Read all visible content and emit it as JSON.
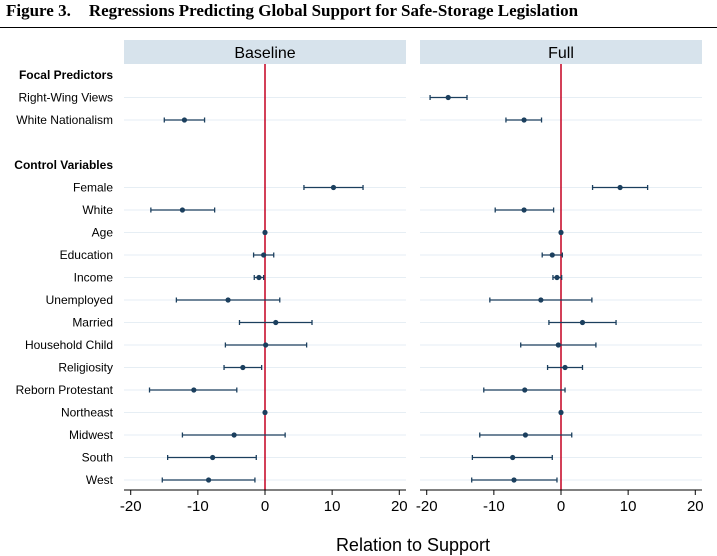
{
  "figure": {
    "number": "Figure 3.",
    "title": "Regressions Predicting Global Support for Safe-Storage Legislation"
  },
  "colors": {
    "strip_bg": "#d7e3ec",
    "point": "#1b3f5e",
    "ci": "#1b3f5e",
    "zero_line": "#c8102e",
    "grid": "#e6eef4",
    "axis": "#000000"
  },
  "chart_data": {
    "type": "scatter",
    "subtype": "coefficient-plot",
    "xlabel": "Relation to Support",
    "xlim": [
      -21,
      21
    ],
    "xticks": [
      -20,
      -10,
      0,
      10,
      20
    ],
    "xtick_labels": [
      "-20",
      "-10",
      "0",
      "10",
      "20"
    ],
    "reference_line": 0,
    "grid": "horizontal",
    "rows": [
      {
        "label": "Focal Predictors",
        "header": true
      },
      {
        "label": "Right-Wing Views"
      },
      {
        "label": "White Nationalism"
      },
      {
        "label": "",
        "spacer": true
      },
      {
        "label": "Control Variables",
        "header": true
      },
      {
        "label": "Female"
      },
      {
        "label": "White"
      },
      {
        "label": "Age"
      },
      {
        "label": "Education"
      },
      {
        "label": "Income"
      },
      {
        "label": "Unemployed"
      },
      {
        "label": "Married"
      },
      {
        "label": "Household Child"
      },
      {
        "label": "Religiosity"
      },
      {
        "label": "Reborn Protestant"
      },
      {
        "label": "Northeast"
      },
      {
        "label": "Midwest"
      },
      {
        "label": "South"
      },
      {
        "label": "West"
      }
    ],
    "panels": [
      {
        "name": "Baseline",
        "points": [
          {
            "variable": "White Nationalism",
            "estimate": -12.0,
            "ci": [
              -15.0,
              -9.0
            ]
          },
          {
            "variable": "Female",
            "estimate": 10.2,
            "ci": [
              5.8,
              14.6
            ]
          },
          {
            "variable": "White",
            "estimate": -12.3,
            "ci": [
              -17.0,
              -7.5
            ]
          },
          {
            "variable": "Age",
            "estimate": 0.0,
            "ci": [
              -0.1,
              0.1
            ]
          },
          {
            "variable": "Education",
            "estimate": -0.2,
            "ci": [
              -1.7,
              1.3
            ]
          },
          {
            "variable": "Income",
            "estimate": -0.9,
            "ci": [
              -1.6,
              -0.2
            ]
          },
          {
            "variable": "Unemployed",
            "estimate": -5.5,
            "ci": [
              -13.2,
              2.2
            ]
          },
          {
            "variable": "Married",
            "estimate": 1.6,
            "ci": [
              -3.8,
              7.0
            ]
          },
          {
            "variable": "Household Child",
            "estimate": 0.1,
            "ci": [
              -5.9,
              6.2
            ]
          },
          {
            "variable": "Religiosity",
            "estimate": -3.3,
            "ci": [
              -6.1,
              -0.5
            ]
          },
          {
            "variable": "Reborn Protestant",
            "estimate": -10.6,
            "ci": [
              -17.2,
              -4.2
            ]
          },
          {
            "variable": "Northeast",
            "estimate": 0.0,
            "ci": [
              -0.1,
              0.1
            ]
          },
          {
            "variable": "Midwest",
            "estimate": -4.6,
            "ci": [
              -12.3,
              3.0
            ]
          },
          {
            "variable": "South",
            "estimate": -7.8,
            "ci": [
              -14.5,
              -1.3
            ]
          },
          {
            "variable": "West",
            "estimate": -8.4,
            "ci": [
              -15.3,
              -1.5
            ]
          }
        ]
      },
      {
        "name": "Full",
        "points": [
          {
            "variable": "Right-Wing Views",
            "estimate": -16.8,
            "ci": [
              -19.5,
              -14.0
            ]
          },
          {
            "variable": "White Nationalism",
            "estimate": -5.5,
            "ci": [
              -8.2,
              -2.9
            ]
          },
          {
            "variable": "Female",
            "estimate": 8.8,
            "ci": [
              4.7,
              12.9
            ]
          },
          {
            "variable": "White",
            "estimate": -5.5,
            "ci": [
              -9.8,
              -1.1
            ]
          },
          {
            "variable": "Age",
            "estimate": 0.0,
            "ci": [
              -0.1,
              0.1
            ]
          },
          {
            "variable": "Education",
            "estimate": -1.3,
            "ci": [
              -2.8,
              0.2
            ]
          },
          {
            "variable": "Income",
            "estimate": -0.6,
            "ci": [
              -1.2,
              0.1
            ]
          },
          {
            "variable": "Unemployed",
            "estimate": -3.0,
            "ci": [
              -10.6,
              4.6
            ]
          },
          {
            "variable": "Married",
            "estimate": 3.2,
            "ci": [
              -1.8,
              8.2
            ]
          },
          {
            "variable": "Household Child",
            "estimate": -0.4,
            "ci": [
              -6.0,
              5.2
            ]
          },
          {
            "variable": "Religiosity",
            "estimate": 0.6,
            "ci": [
              -2.0,
              3.2
            ]
          },
          {
            "variable": "Reborn Protestant",
            "estimate": -5.4,
            "ci": [
              -11.5,
              0.6
            ]
          },
          {
            "variable": "Northeast",
            "estimate": 0.0,
            "ci": [
              -0.1,
              0.1
            ]
          },
          {
            "variable": "Midwest",
            "estimate": -5.3,
            "ci": [
              -12.1,
              1.6
            ]
          },
          {
            "variable": "South",
            "estimate": -7.2,
            "ci": [
              -13.2,
              -1.3
            ]
          },
          {
            "variable": "West",
            "estimate": -7.0,
            "ci": [
              -13.3,
              -0.6
            ]
          }
        ]
      }
    ]
  }
}
